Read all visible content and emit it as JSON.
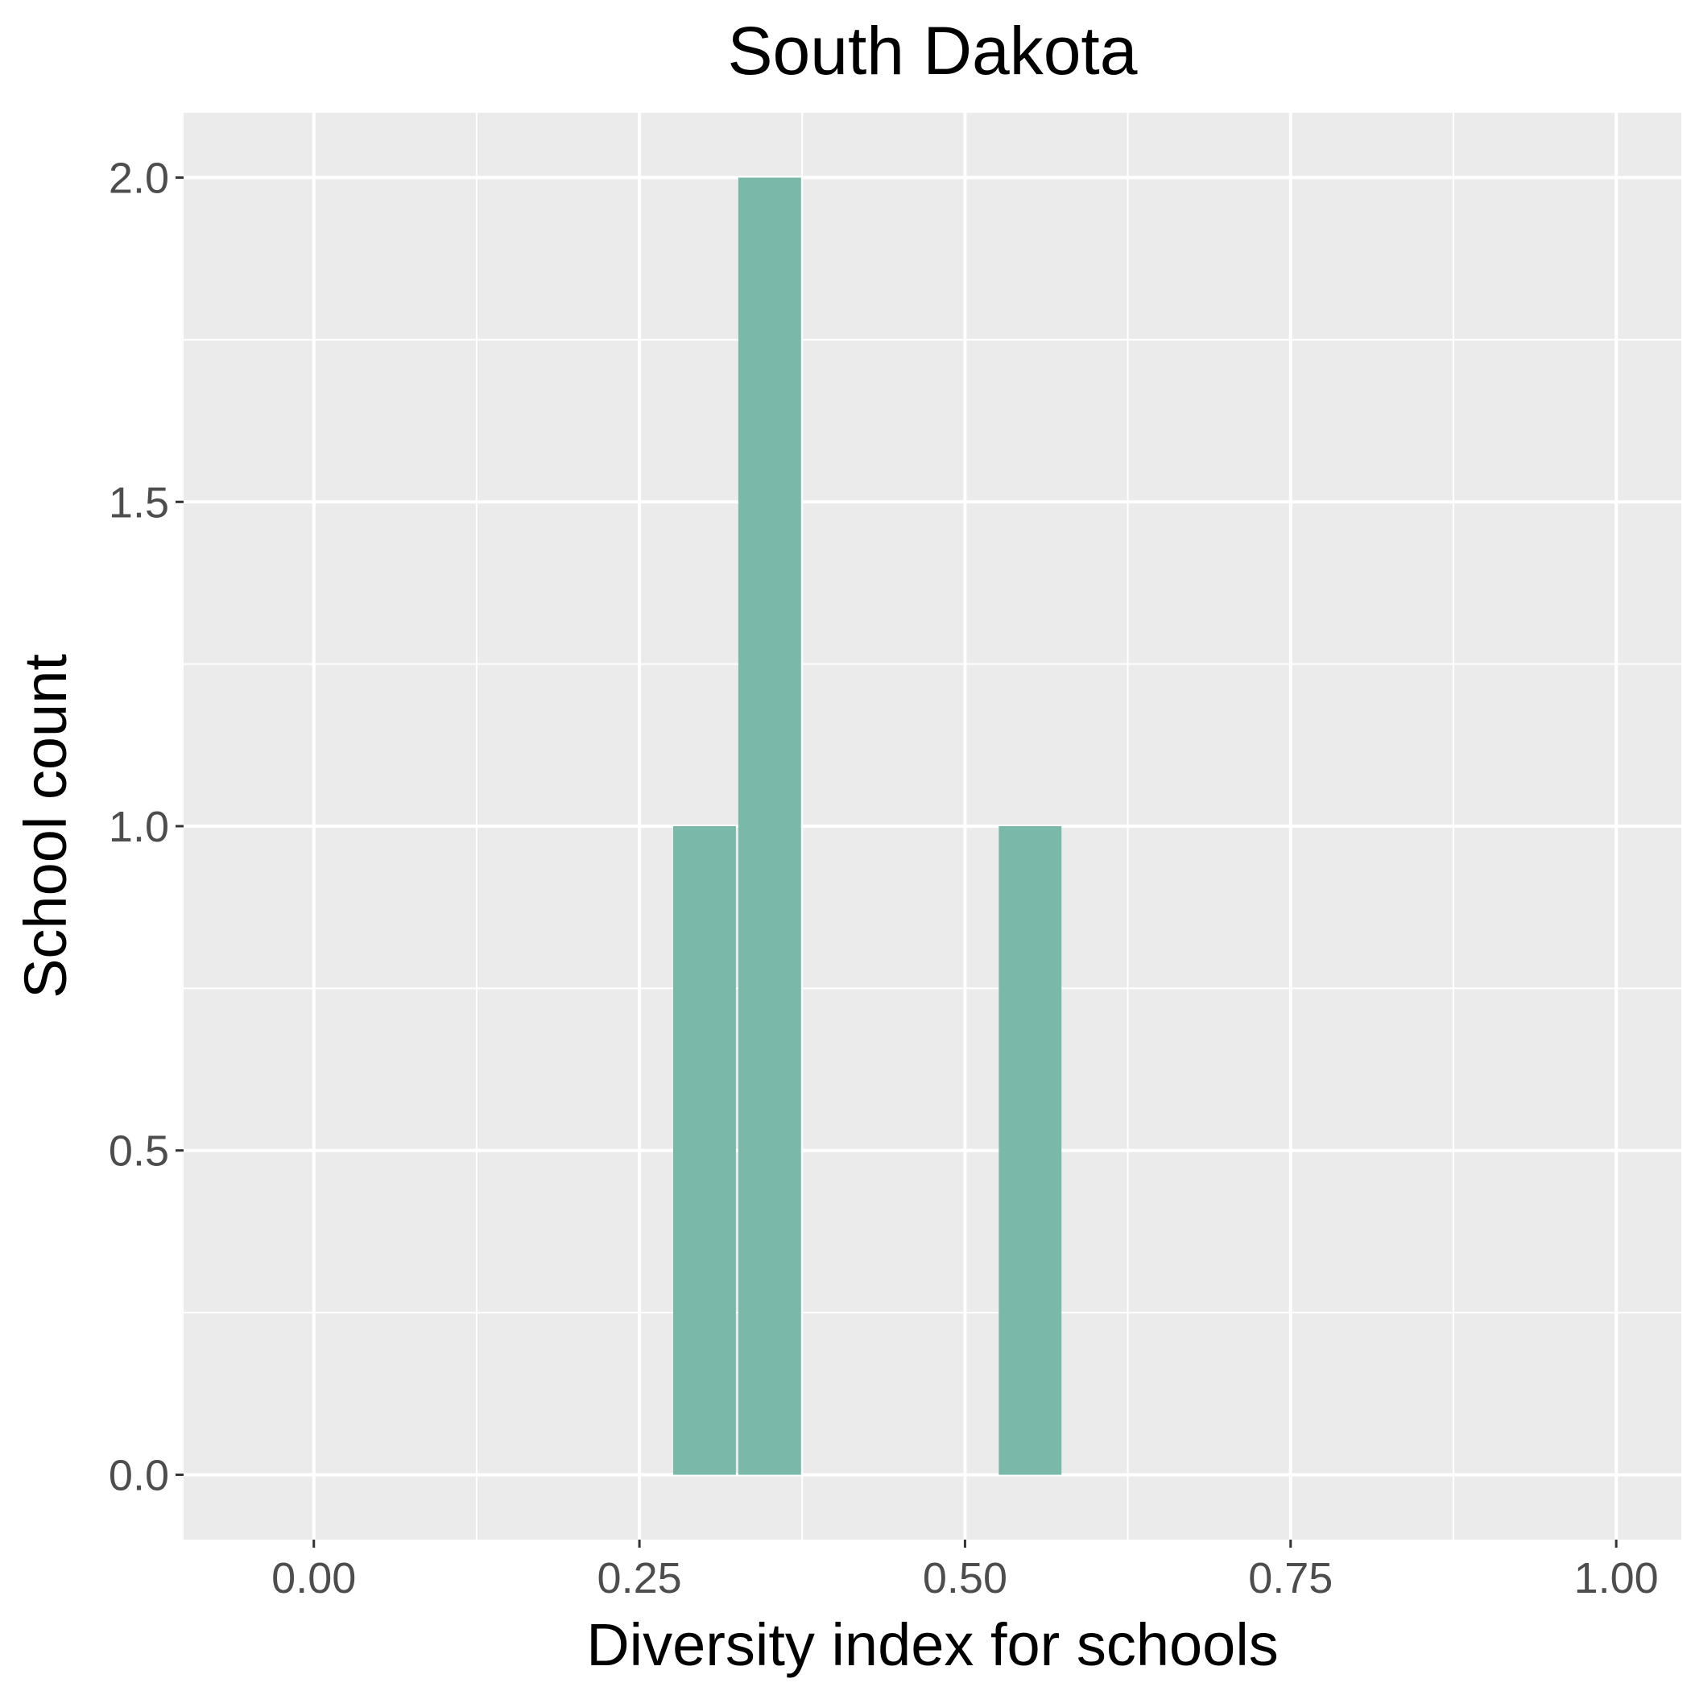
{
  "chart_data": {
    "type": "bar",
    "title": "South Dakota",
    "xlabel": "Diversity index for schools",
    "ylabel": "School count",
    "xlim": [
      -0.1,
      1.05
    ],
    "ylim": [
      -0.1,
      2.1
    ],
    "x_ticks": [
      {
        "value": 0.0,
        "label": "0.00"
      },
      {
        "value": 0.25,
        "label": "0.25"
      },
      {
        "value": 0.5,
        "label": "0.50"
      },
      {
        "value": 0.75,
        "label": "0.75"
      },
      {
        "value": 1.0,
        "label": "1.00"
      }
    ],
    "y_ticks": [
      {
        "value": 0.0,
        "label": "0.0"
      },
      {
        "value": 0.5,
        "label": "0.5"
      },
      {
        "value": 1.0,
        "label": "1.0"
      },
      {
        "value": 1.5,
        "label": "1.5"
      },
      {
        "value": 2.0,
        "label": "2.0"
      }
    ],
    "x_minor": [
      0.125,
      0.375,
      0.625,
      0.875
    ],
    "y_minor": [
      0.25,
      0.75,
      1.25,
      1.75
    ],
    "bin_width": 0.05,
    "bins": [
      {
        "center": 0.0,
        "count": 0
      },
      {
        "center": 0.3,
        "count": 1
      },
      {
        "center": 0.35,
        "count": 2
      },
      {
        "center": 0.55,
        "count": 1
      },
      {
        "center": 1.0,
        "count": 0
      }
    ],
    "grid": true,
    "legend": "none",
    "colors": {
      "panel": "#ebebeb",
      "bar": "#7ab8aa",
      "grid": "#ffffff",
      "tick_text": "#4d4d4d",
      "tick_mark": "#333333"
    }
  }
}
